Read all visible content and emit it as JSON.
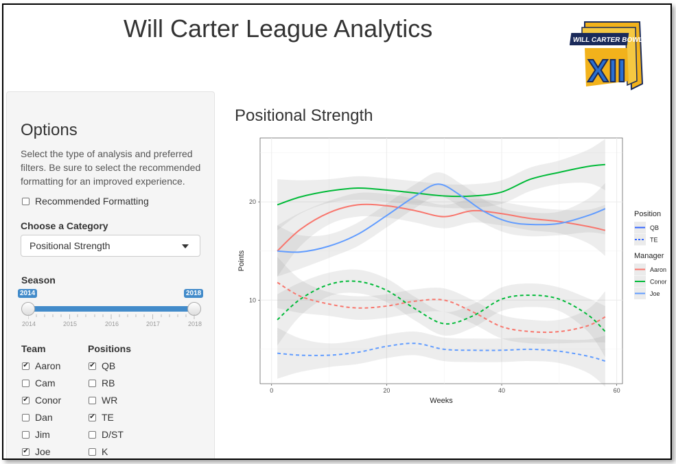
{
  "header": {
    "title": "Will Carter League Analytics",
    "logo_text": "WILL CARTER BOWL",
    "logo_numeral": "XII"
  },
  "sidebar": {
    "title": "Options",
    "description": "Select the type of analysis and preferred filters. Be sure to select the recommended formatting for an improved experience.",
    "recommended_formatting": {
      "label": "Recommended Formatting",
      "checked": false
    },
    "category_label": "Choose a Category",
    "category_value": "Positional Strength",
    "season_label": "Season",
    "season_min": "2014",
    "season_max": "2018",
    "season_ticks": [
      "2014",
      "2015",
      "2016",
      "2017",
      "2018"
    ],
    "team_label": "Team",
    "positions_label": "Positions",
    "teams": [
      {
        "label": "Aaron",
        "checked": true
      },
      {
        "label": "Cam",
        "checked": false
      },
      {
        "label": "Conor",
        "checked": true
      },
      {
        "label": "Dan",
        "checked": false
      },
      {
        "label": "Jim",
        "checked": false
      },
      {
        "label": "Joe",
        "checked": true
      }
    ],
    "positions": [
      {
        "label": "QB",
        "checked": true
      },
      {
        "label": "RB",
        "checked": false
      },
      {
        "label": "WR",
        "checked": false
      },
      {
        "label": "TE",
        "checked": true
      },
      {
        "label": "D/ST",
        "checked": false
      },
      {
        "label": "K",
        "checked": false
      }
    ]
  },
  "main": {
    "plot_title": "Positional Strength"
  },
  "chart_data": {
    "type": "line",
    "title": "",
    "xlabel": "Weeks",
    "ylabel": "Points",
    "xlim": [
      -2,
      61
    ],
    "ylim": [
      1.5,
      26.5
    ],
    "xticks": [
      0,
      20,
      40,
      60
    ],
    "yticks": [
      10,
      20
    ],
    "grid": true,
    "legend_position": "right",
    "legends": [
      {
        "title": "Position",
        "entries": [
          {
            "name": "QB",
            "style": "solid"
          },
          {
            "name": "TE",
            "style": "dashed"
          }
        ]
      },
      {
        "title": "Manager",
        "entries": [
          {
            "name": "Aaron",
            "color": "#F8766D"
          },
          {
            "name": "Conor",
            "color": "#00BA38"
          },
          {
            "name": "Joe",
            "color": "#619CFF"
          }
        ]
      }
    ],
    "series": [
      {
        "name": "Aaron QB",
        "manager": "Aaron",
        "position": "QB",
        "color": "#F8766D",
        "dash": false,
        "x": [
          1,
          5,
          10,
          15,
          20,
          25,
          30,
          35,
          40,
          45,
          50,
          55,
          58
        ],
        "y": [
          15.0,
          17.2,
          18.9,
          19.7,
          19.6,
          19.1,
          18.5,
          19.1,
          18.8,
          18.3,
          18.0,
          17.5,
          17.1
        ]
      },
      {
        "name": "Conor QB",
        "manager": "Conor",
        "position": "QB",
        "color": "#00BA38",
        "dash": false,
        "x": [
          1,
          5,
          10,
          15,
          20,
          25,
          30,
          35,
          40,
          45,
          50,
          55,
          58
        ],
        "y": [
          19.7,
          20.5,
          21.1,
          21.4,
          21.2,
          20.9,
          20.6,
          20.6,
          21.0,
          22.3,
          23.0,
          23.6,
          23.8
        ]
      },
      {
        "name": "Joe QB",
        "manager": "Joe",
        "position": "QB",
        "color": "#619CFF",
        "dash": false,
        "x": [
          1,
          5,
          10,
          15,
          20,
          25,
          29,
          33,
          37,
          41,
          45,
          50,
          55,
          58
        ],
        "y": [
          15.0,
          14.9,
          15.5,
          16.7,
          18.6,
          20.6,
          21.8,
          20.6,
          19.0,
          18.0,
          17.7,
          17.8,
          18.6,
          19.3
        ]
      },
      {
        "name": "Aaron TE",
        "manager": "Aaron",
        "position": "TE",
        "color": "#F8766D",
        "dash": true,
        "x": [
          1,
          5,
          10,
          15,
          20,
          25,
          30,
          35,
          40,
          45,
          50,
          55,
          58
        ],
        "y": [
          11.8,
          10.4,
          9.6,
          9.2,
          9.4,
          9.9,
          10.0,
          8.8,
          7.3,
          6.8,
          6.8,
          7.4,
          8.3
        ]
      },
      {
        "name": "Conor TE",
        "manager": "Conor",
        "position": "TE",
        "color": "#00BA38",
        "dash": true,
        "x": [
          1,
          5,
          10,
          15,
          20,
          25,
          30,
          35,
          40,
          45,
          50,
          55,
          58
        ],
        "y": [
          8.0,
          10.1,
          11.6,
          11.9,
          11.0,
          9.1,
          7.6,
          8.4,
          10.1,
          10.5,
          10.1,
          8.5,
          6.8
        ]
      },
      {
        "name": "Joe TE",
        "manager": "Joe",
        "position": "TE",
        "color": "#619CFF",
        "dash": true,
        "x": [
          1,
          5,
          10,
          15,
          20,
          25,
          30,
          35,
          40,
          45,
          50,
          55,
          58
        ],
        "y": [
          4.6,
          4.4,
          4.4,
          4.7,
          5.3,
          5.6,
          5.0,
          4.9,
          4.9,
          5.0,
          4.8,
          4.3,
          3.8
        ]
      }
    ]
  }
}
